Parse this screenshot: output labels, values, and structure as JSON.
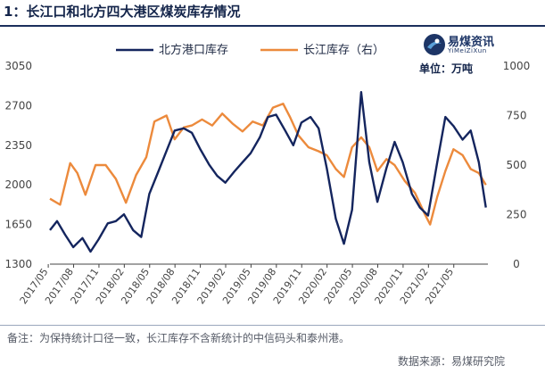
{
  "header": {
    "title": "1：长江口和北方四大港区煤炭库存情况"
  },
  "logo": {
    "name": "易煤资讯",
    "sub": "YiMeiZiXun"
  },
  "unit": "单位：万吨",
  "footer": {
    "note": "备注：为保持统计口径一致，长江库存不含新统计的中信码头和泰州港。",
    "source": "数据来源：易煤研究院"
  },
  "colors": {
    "north": "#14255e",
    "yangtze": "#ec8a3c",
    "title": "#13244a"
  },
  "chart_data": {
    "type": "line",
    "x": [
      "2017/05",
      "2017/08",
      "2017/11",
      "2018/02",
      "2018/05",
      "2018/08",
      "2018/11",
      "2019/02",
      "2019/05",
      "2019/08",
      "2019/11",
      "2020/02",
      "2020/05",
      "2020/08",
      "2020/11",
      "2021/02",
      "2021/05"
    ],
    "y_left": {
      "ylim": [
        1300,
        3050
      ],
      "ticks": [
        1300,
        1650,
        2000,
        2350,
        2700,
        3050
      ]
    },
    "y_right": {
      "ylim": [
        0,
        1000
      ],
      "ticks": [
        0,
        250,
        500,
        750,
        1000
      ]
    },
    "legend": [
      "北方港口库存",
      "长江库存（右）"
    ],
    "series": [
      {
        "name": "北方港口库存",
        "axis": "left",
        "values": [
          [
            2017.35,
            1600
          ],
          [
            2017.42,
            1680
          ],
          [
            2017.5,
            1560
          ],
          [
            2017.58,
            1450
          ],
          [
            2017.67,
            1530
          ],
          [
            2017.75,
            1410
          ],
          [
            2017.83,
            1520
          ],
          [
            2017.92,
            1660
          ],
          [
            2018.0,
            1680
          ],
          [
            2018.08,
            1740
          ],
          [
            2018.17,
            1600
          ],
          [
            2018.25,
            1540
          ],
          [
            2018.33,
            1920
          ],
          [
            2018.42,
            2120
          ],
          [
            2018.5,
            2300
          ],
          [
            2018.58,
            2480
          ],
          [
            2018.67,
            2500
          ],
          [
            2018.75,
            2460
          ],
          [
            2018.83,
            2320
          ],
          [
            2018.92,
            2180
          ],
          [
            2019.0,
            2080
          ],
          [
            2019.08,
            2020
          ],
          [
            2019.17,
            2120
          ],
          [
            2019.25,
            2200
          ],
          [
            2019.33,
            2280
          ],
          [
            2019.42,
            2420
          ],
          [
            2019.5,
            2600
          ],
          [
            2019.58,
            2620
          ],
          [
            2019.67,
            2480
          ],
          [
            2019.75,
            2350
          ],
          [
            2019.83,
            2550
          ],
          [
            2019.92,
            2600
          ],
          [
            2020.0,
            2500
          ],
          [
            2020.08,
            2150
          ],
          [
            2020.17,
            1700
          ],
          [
            2020.25,
            1480
          ],
          [
            2020.33,
            1780
          ],
          [
            2020.42,
            2820
          ],
          [
            2020.5,
            2200
          ],
          [
            2020.58,
            1850
          ],
          [
            2020.67,
            2150
          ],
          [
            2020.75,
            2380
          ],
          [
            2020.83,
            2200
          ],
          [
            2020.92,
            1920
          ],
          [
            2021.0,
            1800
          ],
          [
            2021.08,
            1730
          ],
          [
            2021.17,
            2200
          ],
          [
            2021.25,
            2600
          ],
          [
            2021.33,
            2520
          ],
          [
            2021.42,
            2400
          ],
          [
            2021.5,
            2480
          ],
          [
            2021.58,
            2200
          ],
          [
            2021.65,
            1800
          ]
        ]
      },
      {
        "name": "长江库存（右）",
        "axis": "right",
        "values": [
          [
            2017.35,
            330
          ],
          [
            2017.45,
            300
          ],
          [
            2017.55,
            510
          ],
          [
            2017.62,
            460
          ],
          [
            2017.7,
            350
          ],
          [
            2017.8,
            500
          ],
          [
            2017.9,
            500
          ],
          [
            2018.0,
            430
          ],
          [
            2018.1,
            310
          ],
          [
            2018.2,
            450
          ],
          [
            2018.3,
            540
          ],
          [
            2018.38,
            720
          ],
          [
            2018.5,
            750
          ],
          [
            2018.58,
            630
          ],
          [
            2018.67,
            690
          ],
          [
            2018.75,
            700
          ],
          [
            2018.85,
            730
          ],
          [
            2018.95,
            700
          ],
          [
            2019.05,
            760
          ],
          [
            2019.15,
            710
          ],
          [
            2019.25,
            670
          ],
          [
            2019.35,
            720
          ],
          [
            2019.45,
            700
          ],
          [
            2019.55,
            790
          ],
          [
            2019.65,
            810
          ],
          [
            2019.72,
            740
          ],
          [
            2019.8,
            650
          ],
          [
            2019.9,
            590
          ],
          [
            2020.0,
            570
          ],
          [
            2020.08,
            550
          ],
          [
            2020.17,
            480
          ],
          [
            2020.25,
            440
          ],
          [
            2020.33,
            590
          ],
          [
            2020.42,
            640
          ],
          [
            2020.5,
            590
          ],
          [
            2020.58,
            470
          ],
          [
            2020.67,
            530
          ],
          [
            2020.75,
            500
          ],
          [
            2020.85,
            420
          ],
          [
            2020.95,
            360
          ],
          [
            2021.05,
            250
          ],
          [
            2021.1,
            200
          ],
          [
            2021.17,
            340
          ],
          [
            2021.25,
            470
          ],
          [
            2021.33,
            580
          ],
          [
            2021.42,
            550
          ],
          [
            2021.5,
            480
          ],
          [
            2021.58,
            460
          ],
          [
            2021.65,
            400
          ]
        ]
      }
    ]
  }
}
